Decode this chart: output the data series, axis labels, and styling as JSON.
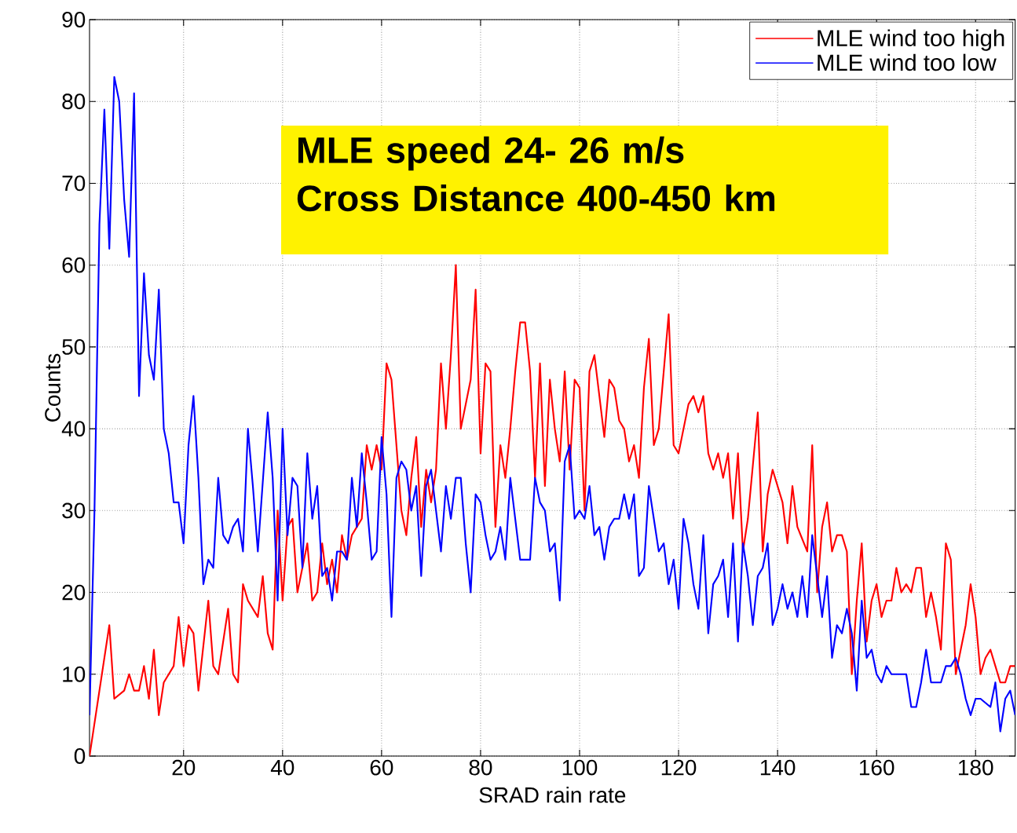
{
  "chart_data": {
    "type": "line",
    "xlabel": "SRAD rain rate",
    "ylabel": "Counts",
    "annotations": [
      "MLE speed 24- 26 m/s",
      "Cross Distance 400-450 km"
    ],
    "xlim": [
      1,
      188
    ],
    "ylim": [
      0,
      90
    ],
    "xticks": [
      20,
      40,
      60,
      80,
      100,
      120,
      140,
      160,
      180
    ],
    "yticks": [
      0,
      10,
      20,
      30,
      40,
      50,
      60,
      70,
      80,
      90
    ],
    "grid": true,
    "legend": "top right",
    "marker": "none",
    "line_style": "solid",
    "series": [
      {
        "name": "MLE wind too high",
        "color": "#ff0000",
        "x": [
          1,
          4,
          5,
          6,
          8,
          9,
          10,
          11,
          12,
          13,
          14,
          15,
          16,
          18,
          19,
          20,
          21,
          22,
          23,
          25,
          26,
          27,
          29,
          30,
          31,
          32,
          33,
          35,
          36,
          37,
          38,
          39,
          40,
          41,
          42,
          43,
          44,
          45,
          46,
          47,
          48,
          49,
          50,
          51,
          52,
          53,
          54,
          56,
          57,
          58,
          59,
          60,
          61,
          62,
          63,
          64,
          65,
          66,
          67,
          68,
          69,
          70,
          71,
          72,
          73,
          74,
          75,
          76,
          77,
          78,
          79,
          80,
          81,
          82,
          83,
          84,
          85,
          86,
          87,
          88,
          89,
          90,
          91,
          92,
          93,
          94,
          95,
          96,
          97,
          98,
          99,
          100,
          101,
          102,
          103,
          104,
          105,
          106,
          107,
          108,
          109,
          110,
          111,
          112,
          113,
          114,
          115,
          116,
          118,
          119,
          120,
          122,
          123,
          124,
          125,
          126,
          127,
          128,
          129,
          130,
          131,
          132,
          133,
          134,
          136,
          137,
          138,
          139,
          140,
          141,
          142,
          143,
          144,
          146,
          147,
          148,
          149,
          150,
          151,
          152,
          153,
          154,
          155,
          156,
          157,
          158,
          159,
          160,
          161,
          162,
          163,
          164,
          165,
          166,
          167,
          168,
          169,
          170,
          171,
          172,
          173,
          174,
          175,
          176,
          178,
          179,
          180,
          181,
          182,
          183,
          184,
          185,
          186,
          187,
          188
        ],
        "values": [
          0,
          12,
          16,
          7,
          8,
          10,
          8,
          8,
          11,
          7,
          13,
          5,
          9,
          11,
          17,
          11,
          16,
          15,
          8,
          19,
          11,
          10,
          18,
          10,
          9,
          21,
          19,
          17,
          22,
          15,
          13,
          30,
          19,
          28,
          29,
          20,
          23,
          26,
          19,
          20,
          26,
          21,
          24,
          20,
          27,
          24,
          27,
          29,
          38,
          35,
          38,
          35,
          48,
          46,
          38,
          30,
          27,
          34,
          39,
          28,
          35,
          31,
          35,
          48,
          40,
          49,
          60,
          40,
          43,
          46,
          57,
          37,
          48,
          47,
          28,
          38,
          34,
          40,
          47,
          53,
          53,
          47,
          34,
          48,
          33,
          46,
          40,
          36,
          47,
          35,
          46,
          45,
          30,
          47,
          49,
          44,
          39,
          46,
          45,
          41,
          40,
          36,
          38,
          34,
          45,
          51,
          38,
          40,
          54,
          38,
          37,
          43,
          44,
          42,
          44,
          37,
          35,
          37,
          34,
          37,
          29,
          37,
          25,
          29,
          42,
          25,
          32,
          35,
          33,
          31,
          26,
          33,
          28,
          25,
          38,
          20,
          28,
          31,
          25,
          27,
          27,
          25,
          10,
          19,
          26,
          14,
          19,
          21,
          17,
          19,
          19,
          23,
          20,
          21,
          20,
          23,
          23,
          17,
          20,
          17,
          13,
          26,
          24,
          10,
          16,
          21,
          17,
          10,
          12,
          13,
          11,
          9,
          9,
          11,
          11
        ]
      },
      {
        "name": "MLE wind too low",
        "color": "#0000ff",
        "x": [
          1,
          2,
          3,
          4,
          5,
          6,
          7,
          8,
          9,
          10,
          11,
          12,
          13,
          14,
          15,
          16,
          17,
          18,
          19,
          20,
          21,
          22,
          23,
          24,
          25,
          26,
          27,
          28,
          29,
          30,
          31,
          32,
          33,
          34,
          35,
          37,
          38,
          39,
          40,
          41,
          42,
          43,
          44,
          45,
          46,
          47,
          48,
          49,
          50,
          51,
          52,
          53,
          54,
          55,
          56,
          57,
          58,
          59,
          60,
          61,
          62,
          63,
          64,
          65,
          66,
          67,
          68,
          69,
          70,
          71,
          72,
          73,
          74,
          75,
          76,
          77,
          78,
          79,
          80,
          81,
          82,
          83,
          84,
          85,
          86,
          87,
          88,
          90,
          91,
          92,
          93,
          94,
          95,
          96,
          97,
          98,
          99,
          100,
          101,
          102,
          103,
          104,
          105,
          106,
          107,
          108,
          109,
          110,
          111,
          112,
          113,
          114,
          115,
          116,
          117,
          118,
          119,
          120,
          121,
          122,
          123,
          124,
          125,
          126,
          127,
          128,
          129,
          130,
          131,
          132,
          133,
          134,
          135,
          136,
          137,
          138,
          139,
          140,
          141,
          142,
          143,
          144,
          145,
          146,
          147,
          148,
          149,
          150,
          151,
          152,
          153,
          154,
          155,
          156,
          157,
          158,
          159,
          160,
          161,
          162,
          163,
          164,
          166,
          167,
          168,
          169,
          170,
          171,
          172,
          173,
          174,
          175,
          176,
          177,
          178,
          179,
          180,
          181,
          183,
          184,
          185,
          186,
          187,
          188
        ],
        "values": [
          5,
          30,
          65,
          79,
          62,
          83,
          80,
          68,
          61,
          81,
          44,
          59,
          49,
          46,
          57,
          40,
          37,
          31,
          31,
          26,
          38,
          44,
          34,
          21,
          24,
          23,
          34,
          27,
          26,
          28,
          29,
          25,
          40,
          33,
          25,
          42,
          34,
          19,
          40,
          27,
          34,
          33,
          23,
          37,
          29,
          33,
          22,
          23,
          19,
          25,
          25,
          24,
          34,
          28,
          37,
          31,
          24,
          25,
          39,
          32,
          17,
          34,
          36,
          35,
          30,
          33,
          22,
          33,
          35,
          30,
          25,
          33,
          29,
          34,
          34,
          26,
          20,
          32,
          31,
          27,
          24,
          25,
          28,
          24,
          34,
          29,
          24,
          24,
          34,
          31,
          30,
          25,
          26,
          19,
          36,
          38,
          29,
          30,
          29,
          33,
          27,
          28,
          24,
          28,
          29,
          29,
          32,
          29,
          32,
          22,
          23,
          33,
          29,
          25,
          26,
          21,
          24,
          18,
          29,
          26,
          21,
          18,
          27,
          15,
          21,
          22,
          24,
          17,
          26,
          14,
          26,
          22,
          16,
          22,
          23,
          26,
          16,
          18,
          21,
          18,
          20,
          17,
          22,
          17,
          27,
          22,
          17,
          22,
          12,
          16,
          15,
          18,
          15,
          8,
          19,
          12,
          13,
          10,
          9,
          11,
          10,
          10,
          10,
          6,
          6,
          9,
          13,
          9,
          9,
          9,
          11,
          11,
          12,
          10,
          7,
          5,
          7,
          7,
          6,
          9,
          3,
          7,
          8,
          5
        ]
      }
    ]
  }
}
